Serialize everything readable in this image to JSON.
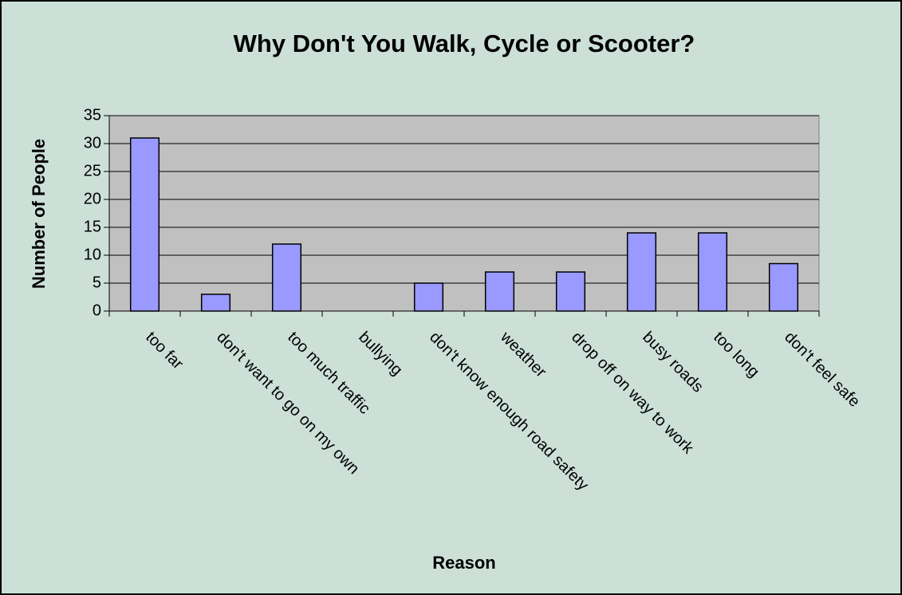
{
  "chart_data": {
    "type": "bar",
    "title": "Why Don't You Walk, Cycle or Scooter?",
    "x_label": "Reason",
    "y_label": "Number of People",
    "categories": [
      "too far",
      "don't want to go on my own",
      "too much traffic",
      "bullying",
      "don't know enough road safety",
      "weather",
      "drop off on way to work",
      "busy roads",
      "too long",
      "don't feel safe"
    ],
    "values": [
      31,
      3,
      12,
      0,
      5,
      7,
      7,
      14,
      14,
      8.5
    ],
    "color": "#9999ff",
    "ylim": [
      0,
      35
    ],
    "yticks": [
      0,
      5,
      10,
      15,
      20,
      25,
      30,
      35
    ],
    "grid": true
  }
}
